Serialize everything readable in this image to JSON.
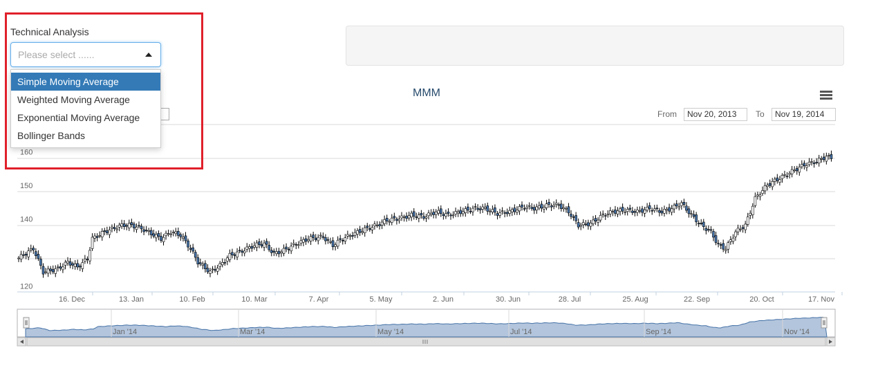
{
  "ta": {
    "label": "Technical Analysis",
    "placeholder": "Please select ......",
    "options": [
      "Simple Moving Average",
      "Weighted Moving Average",
      "Exponential Moving Average",
      "Bollinger Bands"
    ],
    "selected_index": 0
  },
  "chart": {
    "title": "MMM",
    "range": {
      "from_label": "From",
      "from_value": "Nov 20, 2013",
      "to_label": "To",
      "to_value": "Nov 19, 2014"
    }
  },
  "colors": {
    "up": "#ffffff",
    "down": "#4572a7",
    "navigator": "#b3c5dc",
    "grid": "#d8d8d8"
  },
  "chart_data": {
    "type": "candlestick",
    "title": "MMM",
    "ylim": [
      120,
      160
    ],
    "yticks": [
      120,
      140,
      150,
      160
    ],
    "ytick_labels": [
      "120",
      "140",
      "150",
      "160"
    ],
    "xtick_labels": [
      "16. Dec",
      "13. Jan",
      "10. Feb",
      "10. Mar",
      "7. Apr",
      "5. May",
      "2. Jun",
      "30. Jun",
      "28. Jul",
      "25. Aug",
      "22. Sep",
      "20. Oct",
      "17. Nov"
    ],
    "navigator_labels": [
      "Jan '14",
      "Mar '14",
      "May '14",
      "Jul '14",
      "Sep '14",
      "Nov '14"
    ],
    "close_path": [
      [
        0,
        130.2
      ],
      [
        6,
        133
      ],
      [
        10,
        126
      ],
      [
        16,
        127
      ],
      [
        20,
        129
      ],
      [
        24,
        127.5
      ],
      [
        28,
        130
      ],
      [
        30,
        136
      ],
      [
        35,
        138
      ],
      [
        42,
        140
      ],
      [
        46,
        140
      ],
      [
        50,
        139
      ],
      [
        54,
        137.5
      ],
      [
        58,
        136
      ],
      [
        62,
        138
      ],
      [
        66,
        137
      ],
      [
        70,
        133
      ],
      [
        73,
        129
      ],
      [
        78,
        126
      ],
      [
        82,
        128
      ],
      [
        86,
        131
      ],
      [
        90,
        132
      ],
      [
        96,
        134
      ],
      [
        100,
        134.5
      ],
      [
        104,
        131.5
      ],
      [
        108,
        132.5
      ],
      [
        112,
        134
      ],
      [
        118,
        136
      ],
      [
        124,
        136.5
      ],
      [
        128,
        134
      ],
      [
        132,
        136
      ],
      [
        140,
        138.5
      ],
      [
        146,
        140
      ],
      [
        150,
        141.5
      ],
      [
        155,
        142
      ],
      [
        160,
        143
      ],
      [
        165,
        142.5
      ],
      [
        170,
        144
      ],
      [
        175,
        143
      ],
      [
        180,
        144
      ],
      [
        186,
        145
      ],
      [
        190,
        145
      ],
      [
        195,
        143.5
      ],
      [
        200,
        144
      ],
      [
        206,
        145.5
      ],
      [
        210,
        145
      ],
      [
        216,
        146
      ],
      [
        220,
        146
      ],
      [
        224,
        144
      ],
      [
        228,
        140
      ],
      [
        233,
        140.5
      ],
      [
        238,
        143
      ],
      [
        242,
        144
      ],
      [
        247,
        144.5
      ],
      [
        252,
        144
      ],
      [
        257,
        145
      ],
      [
        262,
        144
      ],
      [
        266,
        145
      ],
      [
        270,
        146.5
      ],
      [
        274,
        143
      ],
      [
        278,
        140
      ],
      [
        282,
        138
      ],
      [
        285,
        134
      ],
      [
        288,
        133
      ],
      [
        292,
        138
      ],
      [
        296,
        140
      ],
      [
        300,
        148
      ],
      [
        305,
        152
      ],
      [
        310,
        154
      ],
      [
        315,
        156
      ],
      [
        320,
        158
      ],
      [
        325,
        159
      ],
      [
        329,
        160.5
      ],
      [
        331,
        160
      ]
    ]
  }
}
